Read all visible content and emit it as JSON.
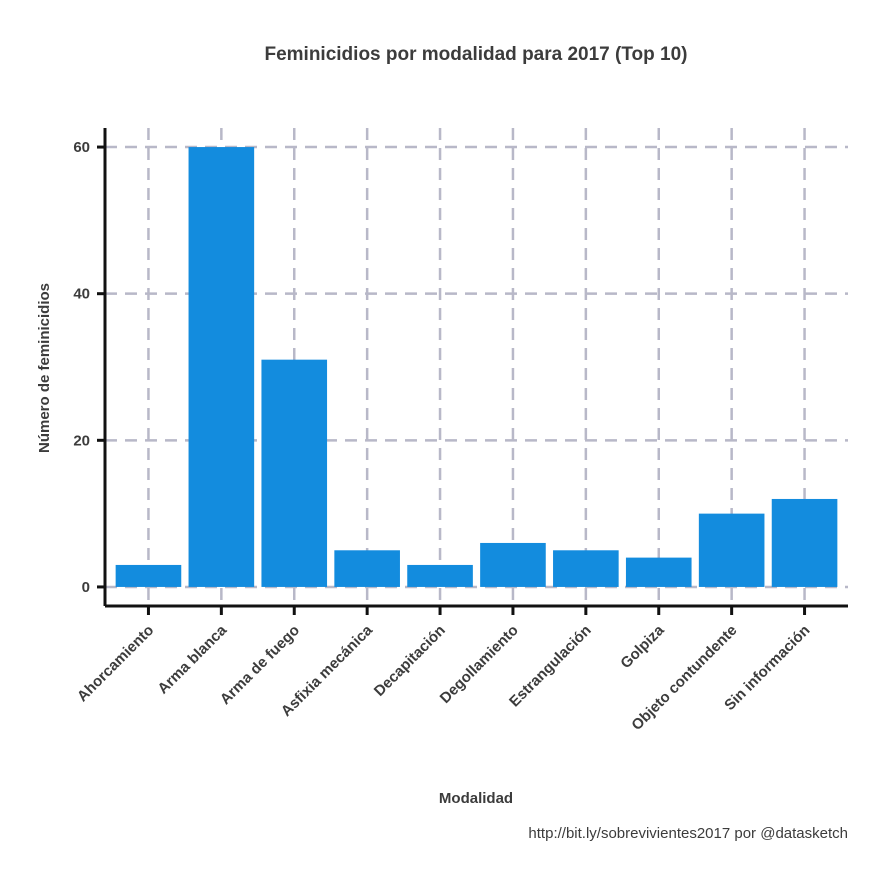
{
  "chart_data": {
    "type": "bar",
    "title": "Feminicidios por modalidad para 2017 (Top 10)",
    "xlabel": "Modalidad",
    "ylabel": "Número de feminicidios",
    "caption": "http://bit.ly/sobrevivientes2017 por @datasketch",
    "categories": [
      "Ahorcamiento",
      "Arma blanca",
      "Arma de fuego",
      "Asfixia mecánica",
      "Decapitación",
      "Degollamiento",
      "Estrangulación",
      "Golpiza",
      "Objeto contundente",
      "Sin información"
    ],
    "values": [
      3,
      60,
      31,
      5,
      3,
      6,
      5,
      4,
      10,
      12
    ],
    "ylim": [
      -2.6,
      62.6
    ],
    "yticks": [
      0,
      20,
      40,
      60
    ],
    "ytick_labels": [
      "0",
      "20",
      "40",
      "60"
    ],
    "grid": true,
    "bar_color": "#138cde",
    "grid_color": "#b8b8c8"
  }
}
